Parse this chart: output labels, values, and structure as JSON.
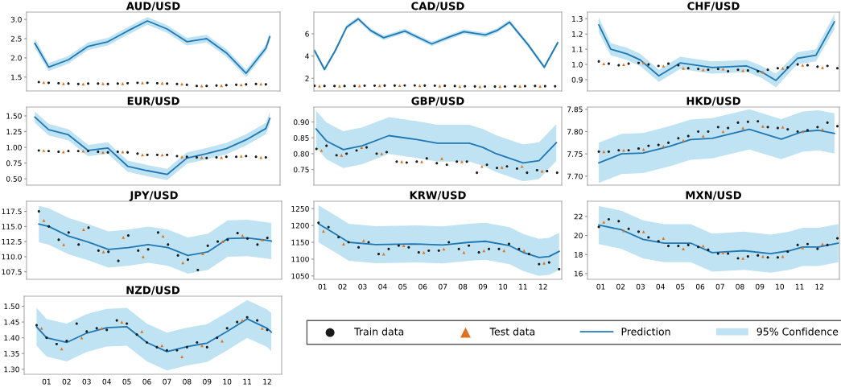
{
  "chart_data": [
    {
      "type": "scatter",
      "title": "AUD/USD",
      "xlim": [
        -0.12,
        12.72
      ],
      "ylim": [
        1.14,
        3.19
      ],
      "yticks": [
        1.5,
        {
          "value": 2,
          "label": "2.0"
        },
        2.5,
        {
          "value": 3,
          "label": "3.0"
        }
      ],
      "tick_labels": "y",
      "series": [
        {
          "type": "scatter",
          "marker": "circle",
          "color": "#1a1a1a",
          "x": [
            0.5,
            1,
            1.5,
            2,
            2.5,
            3,
            3.5,
            4,
            4.5,
            5,
            5.5,
            6,
            6.5,
            7,
            7.5,
            8,
            8.5,
            9,
            9.5,
            10,
            10.5,
            11,
            11.5,
            12
          ],
          "values": [
            1.37,
            1.35,
            1.34,
            1.33,
            1.32,
            1.33,
            1.33,
            1.32,
            1.33,
            1.34,
            1.35,
            1.35,
            1.34,
            1.33,
            1.32,
            1.3,
            1.27,
            1.27,
            1.28,
            1.29,
            1.3,
            1.31,
            1.32,
            1.31
          ]
        },
        {
          "type": "scatter",
          "marker": "triangle",
          "color": "#e0711c",
          "x": [
            0.75,
            1.75,
            2.75,
            3.75,
            4.75,
            5.75,
            6.75,
            7.75,
            8.75,
            9.75,
            10.75,
            11.75
          ],
          "values": [
            1.36,
            1.33,
            1.32,
            1.33,
            1.33,
            1.35,
            1.34,
            1.32,
            1.27,
            1.28,
            1.3,
            1.32
          ]
        },
        {
          "type": "line",
          "color": "#1f77b4",
          "x": [
            0.3,
            1,
            2,
            3,
            4,
            5,
            6,
            7,
            8,
            9,
            10,
            11,
            12,
            12.2
          ],
          "values": [
            2.38,
            1.76,
            1.95,
            2.3,
            2.42,
            2.7,
            2.96,
            2.75,
            2.42,
            2.5,
            2.13,
            1.6,
            2.25,
            2.55
          ],
          "upper": [
            2.5,
            1.86,
            2.05,
            2.4,
            2.52,
            2.8,
            3.06,
            2.85,
            2.52,
            2.6,
            2.23,
            1.7,
            2.35,
            2.67
          ],
          "lower": [
            2.26,
            1.66,
            1.85,
            2.2,
            2.32,
            2.6,
            2.86,
            2.65,
            2.32,
            2.4,
            2.03,
            1.5,
            2.15,
            2.43
          ]
        }
      ]
    },
    {
      "type": "scatter",
      "title": "CAD/USD",
      "xlim": [
        0.57,
        12.93
      ],
      "ylim": [
        0.86,
        7.96
      ],
      "yticks": [
        2,
        4,
        6
      ],
      "tick_labels": "y",
      "series": [
        {
          "type": "scatter",
          "marker": "circle",
          "color": "#1a1a1a",
          "x": [
            0.6,
            1.1,
            1.6,
            2.1,
            2.6,
            3.1,
            3.6,
            4.1,
            4.6,
            5.1,
            5.6,
            6.1,
            6.6,
            7.1,
            7.6,
            8.1,
            8.6,
            9.1,
            9.6,
            10.1,
            10.6,
            11.1,
            11.6,
            12.1,
            12.6
          ],
          "values": [
            1.32,
            1.31,
            1.3,
            1.3,
            1.31,
            1.33,
            1.33,
            1.34,
            1.34,
            1.35,
            1.35,
            1.34,
            1.33,
            1.32,
            1.3,
            1.28,
            1.27,
            1.26,
            1.25,
            1.26,
            1.28,
            1.29,
            1.3,
            1.29,
            1.28
          ]
        },
        {
          "type": "scatter",
          "marker": "triangle",
          "color": "#e0711c",
          "x": [
            0.85,
            1.85,
            2.85,
            3.85,
            4.85,
            5.85,
            6.85,
            7.85,
            8.85,
            9.85,
            10.85,
            11.85
          ],
          "values": [
            1.31,
            1.3,
            1.32,
            1.34,
            1.35,
            1.34,
            1.31,
            1.27,
            1.25,
            1.27,
            1.29,
            1.29
          ]
        },
        {
          "type": "line",
          "color": "#1f77b4",
          "x": [
            0.6,
            1.1,
            1.64,
            2.2,
            2.78,
            3.4,
            4.05,
            5.11,
            6.45,
            7.3,
            8.05,
            9.12,
            9.7,
            10.33,
            11.26,
            12.06,
            12.73
          ],
          "values": [
            4.5,
            2.8,
            4.5,
            6.6,
            7.35,
            6.3,
            5.65,
            6.25,
            5.1,
            5.7,
            6.2,
            5.9,
            6.3,
            7.05,
            5.0,
            3.0,
            5.2
          ],
          "upper": [
            4.7,
            3.0,
            4.7,
            6.8,
            7.55,
            6.5,
            5.85,
            6.45,
            5.3,
            5.9,
            6.4,
            6.1,
            6.5,
            7.25,
            5.2,
            3.2,
            5.4
          ],
          "lower": [
            4.3,
            2.6,
            4.3,
            6.4,
            7.15,
            6.1,
            5.45,
            6.05,
            4.9,
            5.5,
            6.0,
            5.7,
            6.1,
            6.85,
            4.8,
            2.8,
            5.0
          ]
        }
      ]
    },
    {
      "type": "scatter",
      "title": "CHF/USD",
      "xlim": [
        0.33,
        13.0
      ],
      "ylim": [
        0.826,
        1.344
      ],
      "yticks": [
        0.9,
        {
          "value": 1,
          "label": "1.0"
        },
        1.1,
        1.2,
        1.3
      ],
      "tick_labels": "y",
      "series": [
        {
          "type": "scatter",
          "marker": "circle",
          "color": "#1a1a1a",
          "x": [
            0.9,
            1.4,
            1.9,
            2.4,
            2.9,
            3.4,
            3.9,
            4.4,
            4.9,
            5.4,
            5.9,
            6.4,
            6.9,
            7.4,
            7.9,
            8.4,
            8.9,
            9.4,
            9.9,
            10.4,
            10.9,
            11.4,
            11.9,
            12.4,
            12.9
          ],
          "values": [
            1.02,
            1.005,
            0.995,
            1.005,
            1.01,
            1.0,
            0.99,
            1.005,
            0.995,
            0.975,
            0.97,
            0.965,
            0.97,
            0.955,
            0.965,
            0.96,
            0.955,
            0.965,
            0.975,
            0.98,
            1.0,
            0.995,
            0.985,
            0.99,
            0.975
          ]
        },
        {
          "type": "scatter",
          "marker": "triangle",
          "color": "#e0711c",
          "x": [
            1.15,
            2.15,
            3.15,
            4.15,
            5.15,
            6.15,
            7.15,
            8.15,
            9.15,
            10.15,
            11.15,
            12.15
          ],
          "values": [
            1.005,
            1.0,
            1.01,
            0.99,
            0.975,
            0.965,
            0.97,
            0.96,
            0.95,
            0.975,
            0.995,
            0.98
          ]
        },
        {
          "type": "line",
          "color": "#1f77b4",
          "x": [
            0.9,
            1.5,
            2.31,
            2.98,
            3.92,
            4.99,
            6.6,
            8.34,
            9.1,
            9.81,
            10.88,
            11.82,
            12.75
          ],
          "values": [
            1.26,
            1.1,
            1.07,
            1.03,
            0.925,
            1.01,
            0.98,
            0.99,
            0.95,
            0.895,
            1.04,
            1.06,
            1.28
          ],
          "upper": [
            1.31,
            1.14,
            1.11,
            1.07,
            0.965,
            1.05,
            1.02,
            1.03,
            0.99,
            0.94,
            1.08,
            1.1,
            1.33
          ],
          "lower": [
            1.21,
            1.06,
            1.03,
            0.99,
            0.885,
            0.97,
            0.94,
            0.95,
            0.91,
            0.85,
            1.0,
            1.02,
            1.23
          ]
        }
      ]
    },
    {
      "type": "scatter",
      "title": "EUR/USD",
      "xlim": [
        -0.12,
        12.72
      ],
      "ylim": [
        0.4,
        1.64
      ],
      "yticks": [
        {
          "value": 0.5,
          "label": "0.50"
        },
        0.75,
        {
          "value": 1,
          "label": "1.00"
        },
        1.25,
        {
          "value": 1.5,
          "label": "1.50"
        }
      ],
      "tick_labels": "y",
      "series": [
        {
          "type": "scatter",
          "marker": "circle",
          "color": "#1a1a1a",
          "x": [
            0.5,
            1,
            1.5,
            2,
            2.5,
            3,
            3.5,
            4,
            4.5,
            5,
            5.5,
            6,
            6.5,
            7,
            7.5,
            8,
            8.5,
            9,
            9.5,
            10,
            10.5,
            11,
            11.5,
            12
          ],
          "values": [
            0.95,
            0.94,
            0.93,
            0.94,
            0.94,
            0.94,
            0.93,
            0.92,
            0.93,
            0.92,
            0.9,
            0.88,
            0.88,
            0.88,
            0.86,
            0.85,
            0.84,
            0.83,
            0.84,
            0.85,
            0.85,
            0.86,
            0.85,
            0.84
          ]
        },
        {
          "type": "scatter",
          "marker": "triangle",
          "color": "#e0711c",
          "x": [
            0.75,
            1.75,
            2.75,
            3.75,
            4.75,
            5.75,
            6.75,
            7.75,
            8.75,
            9.75,
            10.75,
            11.75
          ],
          "values": [
            0.95,
            0.93,
            0.94,
            0.92,
            0.93,
            0.88,
            0.88,
            0.85,
            0.84,
            0.84,
            0.86,
            0.84
          ]
        },
        {
          "type": "line",
          "color": "#1f77b4",
          "x": [
            0.3,
            1,
            2,
            3,
            4,
            5,
            6,
            7,
            8,
            9,
            10,
            11,
            12,
            12.2
          ],
          "values": [
            1.48,
            1.28,
            1.2,
            0.95,
            0.99,
            0.7,
            0.63,
            0.57,
            0.83,
            0.9,
            0.98,
            1.12,
            1.3,
            1.46
          ],
          "upper": [
            1.57,
            1.37,
            1.29,
            1.04,
            1.08,
            0.79,
            0.72,
            0.66,
            0.92,
            0.99,
            1.07,
            1.21,
            1.39,
            1.56
          ],
          "lower": [
            1.39,
            1.19,
            1.11,
            0.86,
            0.9,
            0.61,
            0.54,
            0.48,
            0.74,
            0.81,
            0.89,
            1.03,
            1.21,
            1.37
          ]
        }
      ]
    },
    {
      "type": "scatter",
      "title": "GBP/USD",
      "xlim": [
        0.57,
        12.93
      ],
      "ylim": [
        0.701,
        0.947
      ],
      "yticks": [
        0.75,
        {
          "value": 0.8,
          "label": "0.80"
        },
        0.85,
        {
          "value": 0.9,
          "label": "0.90"
        }
      ],
      "tick_labels": "y",
      "series": [
        {
          "type": "scatter",
          "marker": "circle",
          "color": "#1a1a1a",
          "x": [
            0.7,
            1.2,
            1.7,
            2.2,
            2.7,
            3.2,
            3.7,
            4.2,
            4.7,
            5.2,
            5.7,
            6.2,
            6.7,
            7.2,
            7.7,
            8.2,
            8.7,
            9.2,
            9.7,
            10.2,
            10.7,
            11.2,
            11.7,
            12.2,
            12.7
          ],
          "values": [
            0.815,
            0.825,
            0.795,
            0.8,
            0.81,
            0.82,
            0.8,
            0.805,
            0.775,
            0.772,
            0.775,
            0.785,
            0.77,
            0.765,
            0.775,
            0.775,
            0.74,
            0.765,
            0.755,
            0.76,
            0.753,
            0.74,
            0.748,
            0.745,
            0.74
          ]
        },
        {
          "type": "scatter",
          "marker": "triangle",
          "color": "#e0711c",
          "x": [
            0.95,
            1.95,
            2.95,
            3.95,
            4.95,
            5.95,
            6.95,
            7.95,
            8.95,
            9.95,
            10.95,
            11.95
          ],
          "values": [
            0.81,
            0.795,
            0.82,
            0.8,
            0.775,
            0.775,
            0.785,
            0.775,
            0.76,
            0.757,
            0.76,
            0.745
          ]
        },
        {
          "type": "line",
          "color": "#1f77b4",
          "x": [
            0.68,
            1.2,
            2.04,
            2.98,
            4.31,
            5.65,
            6.72,
            8.32,
            9.0,
            9.66,
            11.0,
            11.8,
            12.66
          ],
          "values": [
            0.878,
            0.84,
            0.813,
            0.825,
            0.857,
            0.845,
            0.833,
            0.833,
            0.82,
            0.8,
            0.771,
            0.778,
            0.835
          ],
          "upper": [
            0.936,
            0.898,
            0.871,
            0.883,
            0.915,
            0.903,
            0.891,
            0.891,
            0.878,
            0.858,
            0.829,
            0.836,
            0.893
          ],
          "lower": [
            0.82,
            0.782,
            0.755,
            0.767,
            0.799,
            0.787,
            0.775,
            0.775,
            0.762,
            0.742,
            0.713,
            0.72,
            0.777
          ]
        }
      ]
    },
    {
      "type": "scatter",
      "title": "HKD/USD",
      "xlim": [
        0.33,
        13.0
      ],
      "ylim": [
        7.68,
        7.855
      ],
      "yticks": [
        {
          "value": 7.7,
          "label": "7.70"
        },
        7.75,
        {
          "value": 7.8,
          "label": "7.80"
        },
        7.85
      ],
      "tick_labels": "y",
      "series": [
        {
          "type": "scatter",
          "marker": "circle",
          "color": "#1a1a1a",
          "x": [
            0.9,
            1.4,
            1.9,
            2.4,
            2.9,
            3.4,
            3.9,
            4.4,
            4.9,
            5.4,
            5.9,
            6.4,
            6.9,
            7.4,
            7.9,
            8.4,
            8.9,
            9.4,
            9.9,
            10.4,
            10.9,
            11.4,
            11.9,
            12.4,
            12.9
          ],
          "values": [
            7.755,
            7.755,
            7.758,
            7.758,
            7.762,
            7.768,
            7.77,
            7.775,
            7.785,
            7.79,
            7.8,
            7.8,
            7.81,
            7.808,
            7.82,
            7.822,
            7.823,
            7.81,
            7.808,
            7.805,
            7.8,
            7.803,
            7.81,
            7.82,
            7.812
          ]
        },
        {
          "type": "scatter",
          "marker": "triangle",
          "color": "#e0711c",
          "x": [
            1.15,
            2.15,
            3.15,
            4.15,
            5.15,
            6.15,
            7.15,
            8.15,
            9.15,
            10.15,
            11.15,
            12.15
          ],
          "values": [
            7.755,
            7.758,
            7.76,
            7.767,
            7.78,
            7.79,
            7.8,
            7.808,
            7.812,
            7.81,
            7.8,
            7.805
          ]
        },
        {
          "type": "line",
          "color": "#1f77b4",
          "x": [
            0.9,
            2.04,
            3.12,
            4.45,
            5.52,
            6.6,
            8.47,
            10.08,
            11.15,
            11.95,
            12.75
          ],
          "values": [
            7.73,
            7.75,
            7.752,
            7.767,
            7.782,
            7.785,
            7.805,
            7.783,
            7.8,
            7.803,
            7.796
          ],
          "upper": [
            7.775,
            7.795,
            7.797,
            7.812,
            7.827,
            7.83,
            7.85,
            7.828,
            7.845,
            7.848,
            7.841
          ],
          "lower": [
            7.685,
            7.705,
            7.707,
            7.722,
            7.737,
            7.74,
            7.76,
            7.738,
            7.755,
            7.758,
            7.751
          ]
        }
      ]
    },
    {
      "type": "scatter",
      "title": "JPY/USD",
      "xlim": [
        -0.12,
        12.72
      ],
      "ylim": [
        106.26,
        119.18
      ],
      "yticks": [
        107.5,
        {
          "value": 110,
          "label": "110.0"
        },
        112.5,
        {
          "value": 115,
          "label": "115.0"
        },
        117.5
      ],
      "tick_labels": "y",
      "series": [
        {
          "type": "scatter",
          "marker": "circle",
          "color": "#1a1a1a",
          "x": [
            0.5,
            1,
            1.5,
            2,
            2.5,
            3,
            3.5,
            4,
            4.5,
            5,
            5.5,
            6,
            6.5,
            7,
            7.5,
            8,
            8.5,
            9,
            9.5,
            10,
            10.5,
            11,
            11.5,
            12
          ],
          "values": [
            117.5,
            115.0,
            112.8,
            114.0,
            112.0,
            114.8,
            111.0,
            110.8,
            109.3,
            113.5,
            111.0,
            111.2,
            114.0,
            112.0,
            110.2,
            109.5,
            107.8,
            111.8,
            112.5,
            112.8,
            113.9,
            113.0,
            112.0,
            113.1
          ]
        },
        {
          "type": "scatter",
          "marker": "triangle",
          "color": "#e0711c",
          "x": [
            0.75,
            1.75,
            2.75,
            3.75,
            4.75,
            5.75,
            6.75,
            7.75,
            8.75,
            9.75,
            10.75,
            11.75
          ],
          "values": [
            116.0,
            112.0,
            114.5,
            110.8,
            113.2,
            110.0,
            113.4,
            109.0,
            110.5,
            112.5,
            113.5,
            112.8
          ]
        },
        {
          "type": "line",
          "color": "#1f77b4",
          "x": [
            0.5,
            1,
            2,
            3,
            4,
            5,
            6,
            7,
            8,
            9,
            10,
            11,
            12,
            12.2
          ],
          "values": [
            115.4,
            115.0,
            113.4,
            112.4,
            111.2,
            111.5,
            112.0,
            111.5,
            110.2,
            110.8,
            113.0,
            113.1,
            112.7,
            112.6
          ],
          "upper": [
            118.4,
            118.0,
            116.4,
            115.4,
            114.2,
            114.5,
            115.0,
            114.5,
            113.2,
            113.8,
            116.0,
            116.1,
            115.7,
            115.6
          ],
          "lower": [
            112.4,
            112.0,
            110.4,
            109.4,
            108.2,
            108.5,
            109.0,
            108.5,
            107.2,
            107.8,
            110.0,
            110.1,
            109.7,
            109.6
          ]
        }
      ]
    },
    {
      "type": "scatter",
      "title": "KRW/USD",
      "xlim": [
        0.57,
        12.93
      ],
      "xticks": [
        {
          "value": 1,
          "label": "01"
        },
        {
          "value": 2,
          "label": "02"
        },
        {
          "value": 3,
          "label": "03"
        },
        {
          "value": 4,
          "label": "04"
        },
        {
          "value": 5,
          "label": "05"
        },
        {
          "value": 6,
          "label": "06"
        },
        {
          "value": 7,
          "label": "07"
        },
        {
          "value": 8,
          "label": "08"
        },
        {
          "value": 9,
          "label": "09"
        },
        {
          "value": 10,
          "label": "10"
        },
        {
          "value": 11,
          "label": "11"
        },
        {
          "value": 12,
          "label": "12"
        }
      ],
      "ylim": [
        1040,
        1272
      ],
      "yticks": [
        1050,
        1100,
        1150,
        1200,
        1250
      ],
      "series": [
        {
          "type": "scatter",
          "marker": "circle",
          "color": "#1a1a1a",
          "x": [
            0.8,
            1.3,
            1.8,
            2.3,
            2.8,
            3.3,
            3.8,
            4.3,
            4.8,
            5.3,
            5.8,
            6.3,
            6.8,
            7.3,
            7.8,
            8.3,
            8.8,
            9.3,
            9.8,
            10.3,
            10.8,
            11.3,
            11.8,
            12.3,
            12.8
          ],
          "values": [
            1208,
            1195,
            1165,
            1150,
            1135,
            1150,
            1115,
            1130,
            1140,
            1135,
            1120,
            1125,
            1125,
            1150,
            1130,
            1140,
            1120,
            1130,
            1130,
            1145,
            1130,
            1115,
            1085,
            1090,
            1070
          ]
        },
        {
          "type": "scatter",
          "marker": "triangle",
          "color": "#e0711c",
          "x": [
            1.05,
            2.05,
            3.05,
            4.05,
            5.05,
            6.05,
            7.05,
            8.05,
            9.05,
            10.05,
            11.05,
            12.05
          ],
          "values": [
            1183,
            1145,
            1155,
            1115,
            1140,
            1120,
            1130,
            1120,
            1125,
            1125,
            1125,
            1088
          ]
        },
        {
          "type": "line",
          "color": "#1f77b4",
          "x": [
            0.8,
            1.5,
            2.31,
            3.65,
            5.65,
            6.99,
            8.32,
            9.12,
            10.33,
            11.0,
            11.8,
            12.3,
            12.8
          ],
          "values": [
            1205,
            1180,
            1150,
            1143,
            1145,
            1142,
            1150,
            1153,
            1140,
            1120,
            1105,
            1108,
            1123
          ],
          "upper": [
            1260,
            1235,
            1205,
            1198,
            1200,
            1197,
            1205,
            1208,
            1195,
            1175,
            1160,
            1163,
            1178
          ],
          "lower": [
            1150,
            1125,
            1095,
            1088,
            1090,
            1087,
            1095,
            1098,
            1085,
            1065,
            1050,
            1053,
            1068
          ]
        }
      ]
    },
    {
      "type": "scatter",
      "title": "MXN/USD",
      "xlim": [
        0.33,
        13.0
      ],
      "xticks": [
        {
          "value": 1,
          "label": "01"
        },
        {
          "value": 2,
          "label": "02"
        },
        {
          "value": 3,
          "label": "03"
        },
        {
          "value": 4,
          "label": "04"
        },
        {
          "value": 5,
          "label": "05"
        },
        {
          "value": 6,
          "label": "06"
        },
        {
          "value": 7,
          "label": "07"
        },
        {
          "value": 8,
          "label": "08"
        },
        {
          "value": 9,
          "label": "09"
        },
        {
          "value": 10,
          "label": "10"
        },
        {
          "value": 11,
          "label": "11"
        },
        {
          "value": 12,
          "label": "12"
        }
      ],
      "ylim": [
        15.4,
        23.6
      ],
      "yticks": [
        16,
        18,
        20,
        22
      ],
      "series": [
        {
          "type": "scatter",
          "marker": "circle",
          "color": "#1a1a1a",
          "x": [
            0.9,
            1.4,
            1.9,
            2.4,
            2.9,
            3.4,
            3.9,
            4.4,
            4.9,
            5.4,
            5.9,
            6.4,
            6.9,
            7.4,
            7.9,
            8.4,
            8.9,
            9.4,
            9.9,
            10.4,
            10.9,
            11.4,
            11.9,
            12.4,
            12.9
          ],
          "values": [
            20.9,
            21.7,
            21.5,
            20.7,
            20.4,
            19.8,
            19.4,
            18.9,
            18.9,
            19.0,
            18.8,
            18.5,
            18.1,
            18.1,
            17.6,
            17.8,
            17.9,
            17.7,
            17.7,
            18.3,
            19.0,
            19.1,
            18.6,
            19.0,
            19.7
          ]
        },
        {
          "type": "scatter",
          "marker": "triangle",
          "color": "#e0711c",
          "x": [
            1.15,
            2.15,
            3.15,
            4.15,
            5.15,
            6.15,
            7.15,
            8.15,
            9.15,
            10.15,
            11.15,
            12.15
          ],
          "values": [
            21.4,
            20.5,
            20.4,
            19.7,
            18.6,
            18.9,
            18.2,
            17.6,
            17.8,
            17.8,
            18.7,
            19.1
          ]
        },
        {
          "type": "line",
          "color": "#1f77b4",
          "x": [
            0.9,
            2.04,
            3.12,
            4.19,
            5.52,
            6.6,
            8.2,
            9.54,
            10.48,
            11.15,
            11.95,
            12.95
          ],
          "values": [
            21.1,
            20.6,
            19.6,
            19.2,
            19.2,
            18.2,
            18.4,
            18.1,
            18.4,
            18.8,
            18.8,
            19.2
          ],
          "upper": [
            23.1,
            22.6,
            21.6,
            21.2,
            21.2,
            20.2,
            20.4,
            20.1,
            20.4,
            20.8,
            20.8,
            21.2
          ],
          "lower": [
            19.1,
            18.6,
            17.6,
            17.2,
            17.2,
            16.2,
            16.4,
            16.1,
            16.4,
            16.8,
            16.8,
            17.2
          ]
        }
      ]
    },
    {
      "type": "scatter",
      "title": "NZD/USD",
      "xlim": [
        -0.12,
        12.72
      ],
      "xticks": [
        {
          "value": 1,
          "label": "01"
        },
        {
          "value": 2,
          "label": "02"
        },
        {
          "value": 3,
          "label": "03"
        },
        {
          "value": 4,
          "label": "04"
        },
        {
          "value": 5,
          "label": "05"
        },
        {
          "value": 6,
          "label": "06"
        },
        {
          "value": 7,
          "label": "07"
        },
        {
          "value": 8,
          "label": "08"
        },
        {
          "value": 9,
          "label": "09"
        },
        {
          "value": 10,
          "label": "10"
        },
        {
          "value": 11,
          "label": "11"
        },
        {
          "value": 12,
          "label": "12"
        }
      ],
      "ylim": [
        1.284,
        1.532
      ],
      "yticks": [
        {
          "value": 1.3,
          "label": "1.30"
        },
        1.35,
        {
          "value": 1.4,
          "label": "1.40"
        },
        1.45,
        {
          "value": 1.5,
          "label": "1.50"
        }
      ],
      "legend": "right",
      "annotations": [
        "95% Confidence"
      ],
      "series": [
        {
          "type": "scatter",
          "name": "Train data",
          "marker": "circle",
          "color": "#1a1a1a",
          "x": [
            0.5,
            1,
            1.5,
            2,
            2.5,
            3,
            3.5,
            4,
            4.5,
            5,
            5.5,
            6,
            6.5,
            7,
            7.5,
            8,
            8.5,
            9,
            9.5,
            10,
            10.5,
            11,
            11.5,
            12
          ],
          "values": [
            1.44,
            1.4,
            1.38,
            1.39,
            1.445,
            1.42,
            1.43,
            1.425,
            1.455,
            1.445,
            1.41,
            1.385,
            1.37,
            1.36,
            1.36,
            1.37,
            1.385,
            1.37,
            1.4,
            1.43,
            1.45,
            1.465,
            1.455,
            1.425
          ]
        },
        {
          "type": "scatter",
          "name": "Test data",
          "marker": "triangle",
          "color": "#e0711c",
          "x": [
            0.75,
            1.75,
            2.75,
            3.75,
            4.75,
            5.75,
            6.75,
            7.75,
            8.75,
            9.75,
            10.75,
            11.75
          ],
          "values": [
            1.43,
            1.365,
            1.4,
            1.43,
            1.45,
            1.42,
            1.375,
            1.34,
            1.375,
            1.39,
            1.455,
            1.43
          ]
        },
        {
          "type": "line",
          "name": "Prediction",
          "color": "#1f77b4",
          "x": [
            0.5,
            1,
            2,
            3,
            4,
            5,
            6,
            7,
            8,
            9,
            10,
            11,
            12,
            12.2
          ],
          "values": [
            1.435,
            1.4,
            1.385,
            1.415,
            1.432,
            1.435,
            1.385,
            1.356,
            1.372,
            1.383,
            1.42,
            1.46,
            1.43,
            1.418
          ],
          "upper": [
            1.495,
            1.46,
            1.445,
            1.475,
            1.492,
            1.495,
            1.445,
            1.416,
            1.432,
            1.443,
            1.48,
            1.52,
            1.49,
            1.478
          ],
          "lower": [
            1.375,
            1.34,
            1.325,
            1.355,
            1.372,
            1.375,
            1.325,
            1.296,
            1.312,
            1.323,
            1.36,
            1.4,
            1.37,
            1.358
          ]
        }
      ]
    }
  ]
}
